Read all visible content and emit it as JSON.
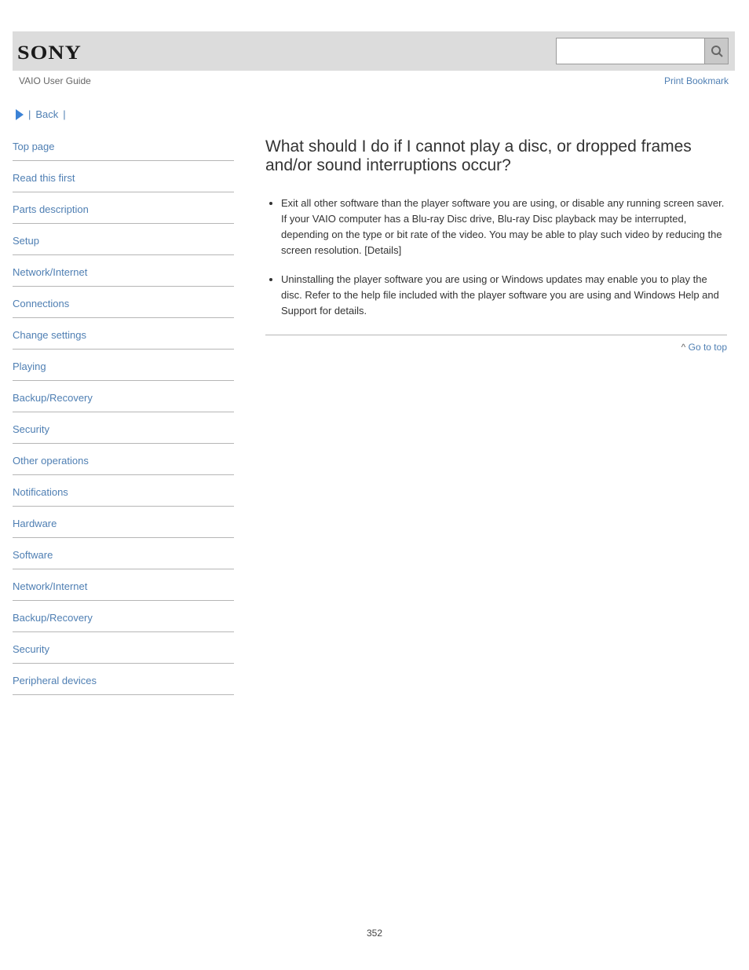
{
  "header": {
    "logo_text": "SONY",
    "search_value": "",
    "search_placeholder": ""
  },
  "subheader": {
    "product": "VAIO User Guide",
    "print_label": "Print",
    "bookmark_label": "Bookmark"
  },
  "back": {
    "label": "Back",
    "prefix": "|",
    "suffix": "|"
  },
  "sidebar": {
    "items": [
      {
        "name": "nav-top",
        "interactable": false,
        "label": "Top page"
      },
      {
        "name": "nav-read",
        "interactable": true,
        "label": "Read this first"
      },
      {
        "name": "nav-parts",
        "interactable": true,
        "label": "Parts description"
      },
      {
        "name": "nav-setup",
        "interactable": true,
        "label": "Setup"
      },
      {
        "name": "nav-network",
        "interactable": true,
        "label": "Network/Internet"
      },
      {
        "name": "nav-connections",
        "interactable": true,
        "label": "Connections"
      },
      {
        "name": "nav-settings",
        "interactable": true,
        "label": "Change settings"
      },
      {
        "name": "nav-playing",
        "interactable": true,
        "label": "Playing"
      },
      {
        "name": "nav-backup",
        "interactable": true,
        "label": "Backup/Recovery"
      },
      {
        "name": "nav-security",
        "interactable": true,
        "label": "Security"
      },
      {
        "name": "nav-other",
        "interactable": true,
        "label": "Other operations"
      },
      {
        "name": "nav-notifications",
        "interactable": true,
        "label": "Notifications"
      },
      {
        "name": "nav-hardware",
        "interactable": true,
        "label": "Hardware"
      },
      {
        "name": "nav-software",
        "interactable": true,
        "label": "Software"
      },
      {
        "name": "nav-network-internet-2",
        "interactable": true,
        "label": "Network/Internet"
      },
      {
        "name": "nav-backup-recovery-2",
        "interactable": true,
        "label": "Backup/Recovery"
      },
      {
        "name": "nav-security-2",
        "interactable": true,
        "label": "Security"
      },
      {
        "name": "nav-peripheral",
        "interactable": true,
        "label": "Peripheral devices"
      }
    ]
  },
  "main": {
    "title": "What should I do if I cannot play a disc, or dropped frames and/or sound interruptions occur?",
    "bullets": [
      "Exit all other software than the player software you are using, or disable any running screen saver. If your VAIO computer has a Blu-ray Disc drive, Blu-ray Disc playback may be interrupted, depending on the type or bit rate of the video. You may be able to play such video by reducing the screen resolution. [Details]",
      "Uninstalling the player software you are using or Windows updates may enable you to play the disc. Refer to the help file included with the player software you are using and Windows Help and Support for details."
    ],
    "top_caret": "^",
    "top_label": "Go to top"
  },
  "footer": {
    "page_number": "352"
  },
  "interactable_map": {
    "nav-top": "false",
    "nav-read": "true",
    "nav-parts": "true",
    "nav-setup": "true",
    "nav-network": "true",
    "nav-connections": "true",
    "nav-settings": "true",
    "nav-playing": "true",
    "nav-backup": "true",
    "nav-security": "true",
    "nav-other": "true",
    "nav-notifications": "true",
    "nav-hardware": "true",
    "nav-software": "true",
    "nav-network-internet-2": "true",
    "nav-backup-recovery-2": "true",
    "nav-security-2": "true",
    "nav-peripheral": "true"
  },
  "colors": {
    "header_bg": "#dcdcdc",
    "link": "#4f7fb3",
    "caret": "#3b82d6",
    "rule": "#b6b6b6",
    "text": "#333333",
    "muted": "#666666",
    "page_bg": "#ffffff"
  }
}
